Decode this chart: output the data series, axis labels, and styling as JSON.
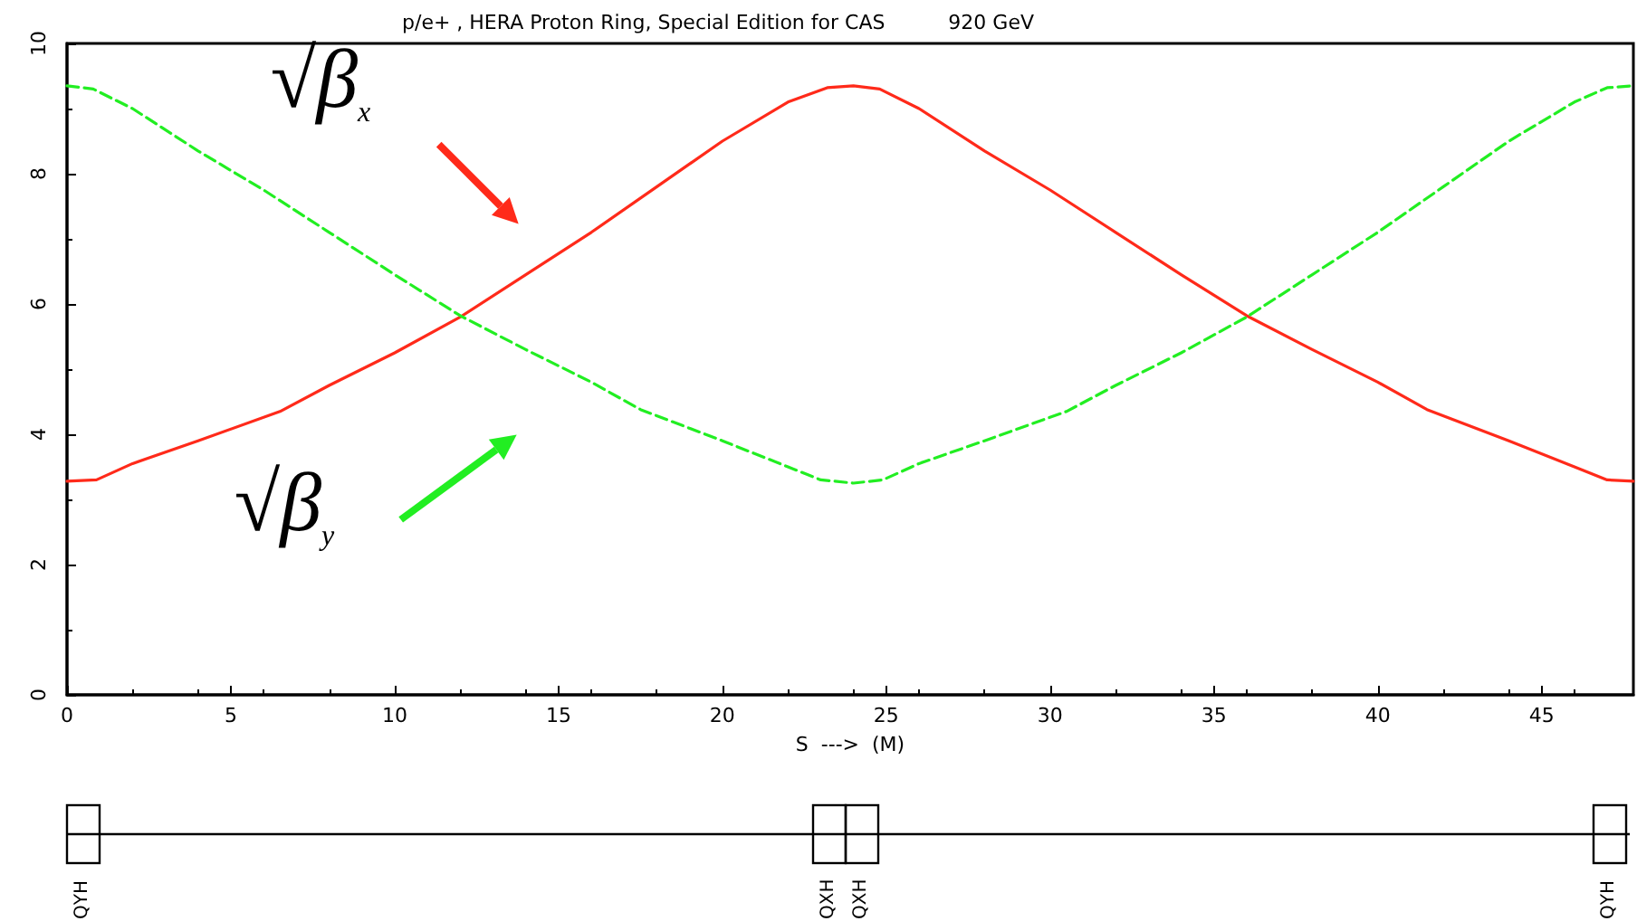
{
  "chart_data": {
    "type": "line",
    "title": "p/e+ , HERA Proton Ring, Special Edition for CAS          920 GeV",
    "xlabel": "S  --->  (M)",
    "xlim": [
      0,
      47.8
    ],
    "xticks": [
      0,
      5,
      10,
      15,
      20,
      25,
      30,
      35,
      40,
      45
    ],
    "ylim": [
      0,
      10
    ],
    "yticks": [
      0,
      2,
      4,
      6,
      8,
      10
    ],
    "marker": "none",
    "series": [
      {
        "color": "#ff2a1a",
        "line_style": "solid",
        "x": [
          0,
          0.9,
          2,
          4,
          6.5,
          8,
          10,
          12,
          14,
          16,
          18,
          20,
          22,
          23.2,
          24,
          24.8,
          26,
          28,
          30,
          32,
          34,
          36,
          38,
          40,
          41.5,
          44,
          46,
          47,
          47.8
        ],
        "values": [
          3.28,
          3.3,
          3.55,
          3.9,
          4.35,
          4.75,
          5.25,
          5.8,
          6.45,
          7.1,
          7.8,
          8.5,
          9.1,
          9.32,
          9.35,
          9.3,
          9.0,
          8.35,
          7.75,
          7.1,
          6.45,
          5.82,
          5.3,
          4.8,
          4.38,
          3.9,
          3.5,
          3.3,
          3.28
        ]
      },
      {
        "color": "#22ee22",
        "line_style": "dashed",
        "x": [
          0,
          0.8,
          2,
          4,
          6,
          8,
          10,
          12,
          14,
          16,
          17.5,
          20,
          22,
          23,
          24,
          24.9,
          26,
          28,
          30.5,
          32,
          34,
          36,
          38,
          40,
          42,
          44,
          46,
          47,
          47.8
        ],
        "values": [
          9.35,
          9.3,
          9.0,
          8.35,
          7.75,
          7.1,
          6.45,
          5.82,
          5.3,
          4.8,
          4.38,
          3.9,
          3.5,
          3.3,
          3.25,
          3.3,
          3.55,
          3.9,
          4.35,
          4.75,
          5.25,
          5.8,
          6.45,
          7.1,
          7.8,
          8.5,
          9.1,
          9.32,
          9.35
        ]
      }
    ],
    "annotations": [
      {
        "text": "√β$_{x}$",
        "x": 14,
        "y": 6.45
      },
      {
        "text": "√β$_{y}$",
        "x": 14,
        "y": 5.3
      },
      "QYH",
      "QXH",
      "QXH",
      "QYH"
    ]
  }
}
